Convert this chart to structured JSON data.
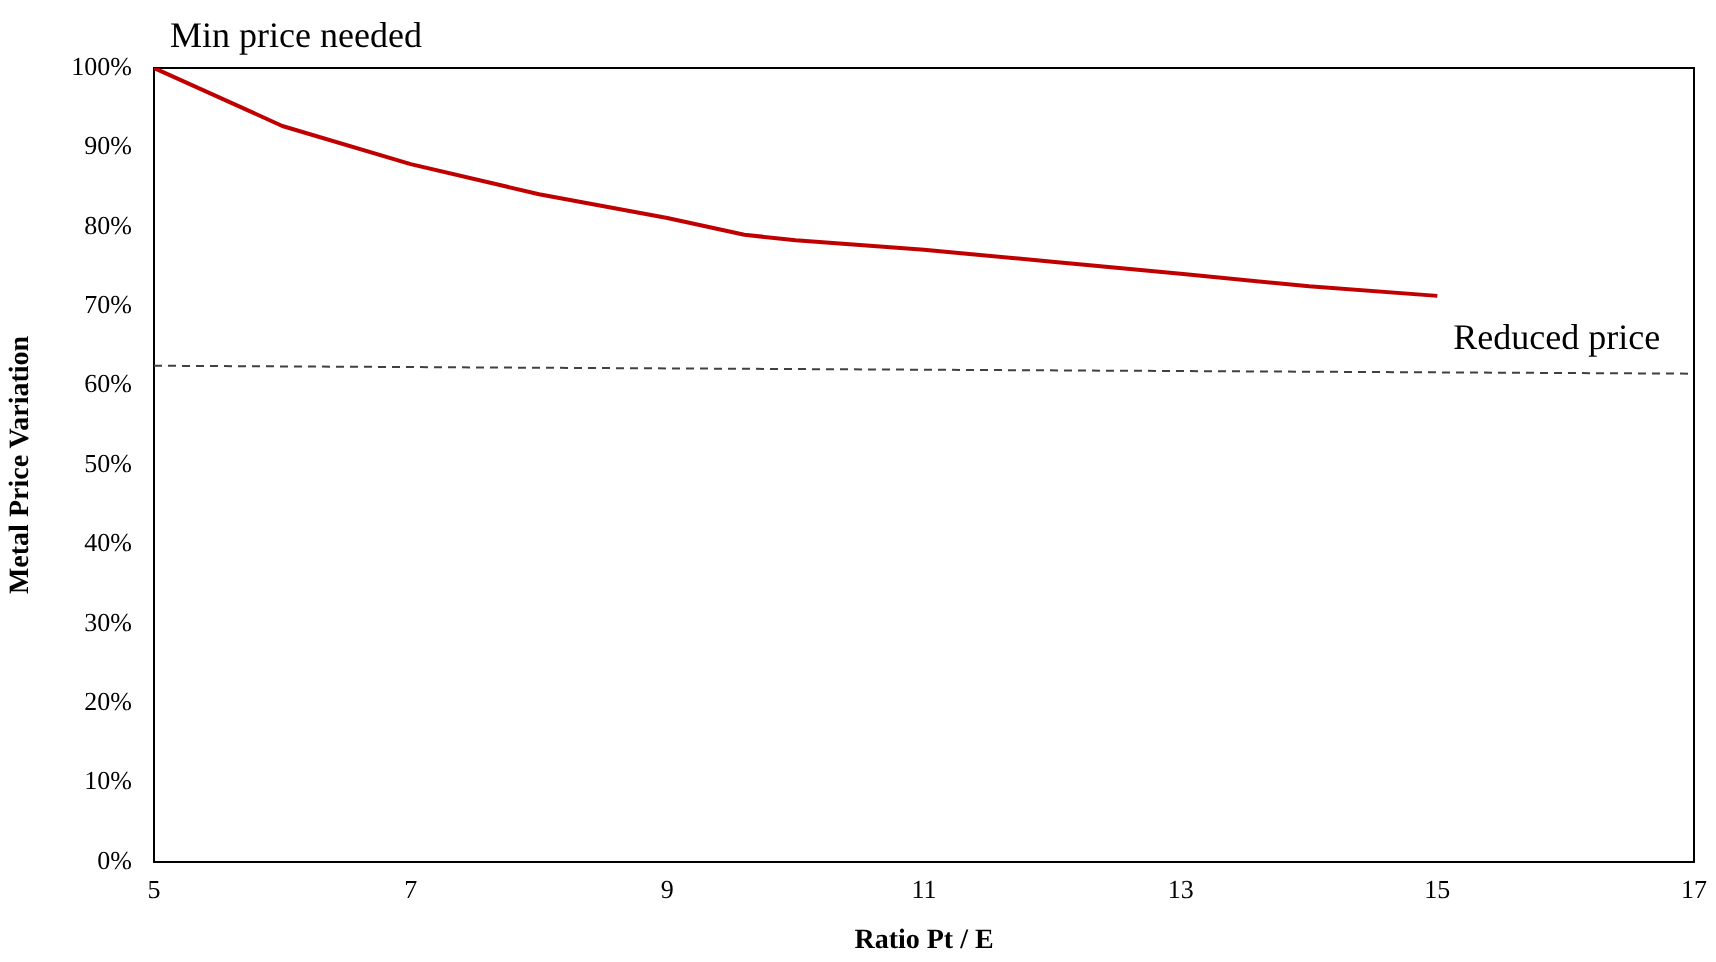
{
  "chart_data": {
    "type": "line",
    "xlabel": "Ratio Pt / E",
    "ylabel": "Metal Price Variation",
    "xlim": [
      5,
      17
    ],
    "xticks": [
      5,
      7,
      9,
      11,
      13,
      15,
      17
    ],
    "ylim": [
      0,
      100
    ],
    "yticks": [
      {
        "value": 0,
        "label": "0%"
      },
      {
        "value": 10,
        "label": "10%"
      },
      {
        "value": 20,
        "label": "20%"
      },
      {
        "value": 30,
        "label": "30%"
      },
      {
        "value": 40,
        "label": "40%"
      },
      {
        "value": 50,
        "label": "50%"
      },
      {
        "value": 60,
        "label": "60%"
      },
      {
        "value": 70,
        "label": "70%"
      },
      {
        "value": 80,
        "label": "80%"
      },
      {
        "value": 90,
        "label": "90%"
      },
      {
        "value": 100,
        "label": "100%"
      }
    ],
    "grid": false,
    "legend": false,
    "marker": "none",
    "series": [
      {
        "color": "#c00000",
        "line_style": "solid",
        "x": [
          5,
          6,
          7,
          8,
          9,
          9.6,
          10,
          11,
          12,
          13,
          14,
          15
        ],
        "values": [
          100,
          92.7,
          87.9,
          84.1,
          81.1,
          79,
          78.3,
          77.1,
          75.6,
          74.1,
          72.5,
          71.3
        ]
      },
      {
        "color": "#404040",
        "line_style": "dashed",
        "x": [
          5,
          17
        ],
        "values": [
          62.5,
          61.5
        ]
      }
    ],
    "annotations": [
      {
        "text": "Min price needed",
        "x": 5,
        "y": 100
      },
      {
        "text": "Reduced price",
        "x": 15,
        "y": 62
      }
    ]
  }
}
